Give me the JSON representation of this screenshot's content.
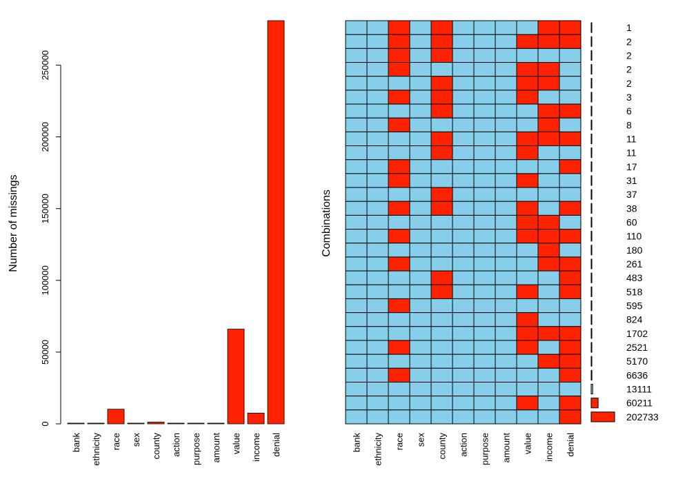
{
  "chart_data": [
    {
      "type": "bar",
      "ylabel": "Number of missings",
      "categories": [
        "bank",
        "ethnicity",
        "race",
        "sex",
        "county",
        "action",
        "purpose",
        "amount",
        "value",
        "income",
        "denial"
      ],
      "values": [
        0,
        0,
        10200,
        0,
        1200,
        0,
        0,
        0,
        66000,
        7500,
        281000
      ],
      "ylim": [
        0,
        281000
      ],
      "yticks": [
        0,
        50000,
        100000,
        150000,
        200000,
        250000
      ],
      "grid": false,
      "color": "#ff2200"
    },
    {
      "type": "heatmap",
      "ylabel": "Combinations",
      "columns": [
        "bank",
        "ethnicity",
        "race",
        "sex",
        "county",
        "action",
        "purpose",
        "amount",
        "value",
        "income",
        "denial"
      ],
      "observed_color": "#87ceeb",
      "missing_color": "#ff2200",
      "rows": [
        {
          "count": "1",
          "missing": [
            0,
            0,
            1,
            0,
            1,
            0,
            0,
            0,
            0,
            1,
            1
          ]
        },
        {
          "count": "2",
          "missing": [
            0,
            0,
            1,
            0,
            1,
            0,
            0,
            0,
            1,
            1,
            1
          ]
        },
        {
          "count": "2",
          "missing": [
            0,
            0,
            1,
            0,
            1,
            0,
            0,
            0,
            0,
            0,
            0
          ]
        },
        {
          "count": "2",
          "missing": [
            0,
            0,
            1,
            0,
            0,
            0,
            0,
            0,
            1,
            1,
            0
          ]
        },
        {
          "count": "2",
          "missing": [
            0,
            0,
            0,
            0,
            1,
            0,
            0,
            0,
            1,
            1,
            0
          ]
        },
        {
          "count": "3",
          "missing": [
            0,
            0,
            1,
            0,
            1,
            0,
            0,
            0,
            1,
            0,
            0
          ]
        },
        {
          "count": "6",
          "missing": [
            0,
            0,
            0,
            0,
            1,
            0,
            0,
            0,
            0,
            1,
            1
          ]
        },
        {
          "count": "8",
          "missing": [
            0,
            0,
            1,
            0,
            0,
            0,
            0,
            0,
            0,
            1,
            0
          ]
        },
        {
          "count": "11",
          "missing": [
            0,
            0,
            0,
            0,
            1,
            0,
            0,
            0,
            1,
            1,
            1
          ]
        },
        {
          "count": "11",
          "missing": [
            0,
            0,
            0,
            0,
            1,
            0,
            0,
            0,
            1,
            0,
            0
          ]
        },
        {
          "count": "17",
          "missing": [
            0,
            0,
            1,
            0,
            0,
            0,
            0,
            0,
            0,
            0,
            1
          ]
        },
        {
          "count": "31",
          "missing": [
            0,
            0,
            1,
            0,
            0,
            0,
            0,
            0,
            1,
            0,
            0
          ]
        },
        {
          "count": "37",
          "missing": [
            0,
            0,
            0,
            0,
            1,
            0,
            0,
            0,
            0,
            0,
            0
          ]
        },
        {
          "count": "38",
          "missing": [
            0,
            0,
            1,
            0,
            1,
            0,
            0,
            0,
            1,
            0,
            1
          ]
        },
        {
          "count": "60",
          "missing": [
            0,
            0,
            0,
            0,
            0,
            0,
            0,
            0,
            1,
            1,
            0
          ]
        },
        {
          "count": "110",
          "missing": [
            0,
            0,
            1,
            0,
            0,
            0,
            0,
            0,
            1,
            1,
            1
          ]
        },
        {
          "count": "180",
          "missing": [
            0,
            0,
            0,
            0,
            0,
            0,
            0,
            0,
            0,
            1,
            0
          ]
        },
        {
          "count": "261",
          "missing": [
            0,
            0,
            1,
            0,
            0,
            0,
            0,
            0,
            0,
            1,
            1
          ]
        },
        {
          "count": "483",
          "missing": [
            0,
            0,
            0,
            0,
            1,
            0,
            0,
            0,
            0,
            0,
            1
          ]
        },
        {
          "count": "518",
          "missing": [
            0,
            0,
            0,
            0,
            1,
            0,
            0,
            0,
            1,
            0,
            1
          ]
        },
        {
          "count": "595",
          "missing": [
            0,
            0,
            1,
            0,
            0,
            0,
            0,
            0,
            0,
            0,
            0
          ]
        },
        {
          "count": "824",
          "missing": [
            0,
            0,
            0,
            0,
            0,
            0,
            0,
            0,
            1,
            0,
            0
          ]
        },
        {
          "count": "1702",
          "missing": [
            0,
            0,
            0,
            0,
            0,
            0,
            0,
            0,
            1,
            1,
            1
          ]
        },
        {
          "count": "2521",
          "missing": [
            0,
            0,
            1,
            0,
            0,
            0,
            0,
            0,
            1,
            0,
            1
          ]
        },
        {
          "count": "5170",
          "missing": [
            0,
            0,
            0,
            0,
            0,
            0,
            0,
            0,
            0,
            1,
            1
          ]
        },
        {
          "count": "6636",
          "missing": [
            0,
            0,
            1,
            0,
            0,
            0,
            0,
            0,
            0,
            0,
            1
          ]
        },
        {
          "count": "13111",
          "missing": [
            0,
            0,
            0,
            0,
            0,
            0,
            0,
            0,
            0,
            0,
            0
          ]
        },
        {
          "count": "60211",
          "missing": [
            0,
            0,
            0,
            0,
            0,
            0,
            0,
            0,
            1,
            0,
            1
          ]
        },
        {
          "count": "202733",
          "missing": [
            0,
            0,
            0,
            0,
            0,
            0,
            0,
            0,
            0,
            0,
            1
          ]
        }
      ],
      "complete_case_bar_color": "#87ceeb",
      "count_bar_color": "#ff2200"
    }
  ]
}
